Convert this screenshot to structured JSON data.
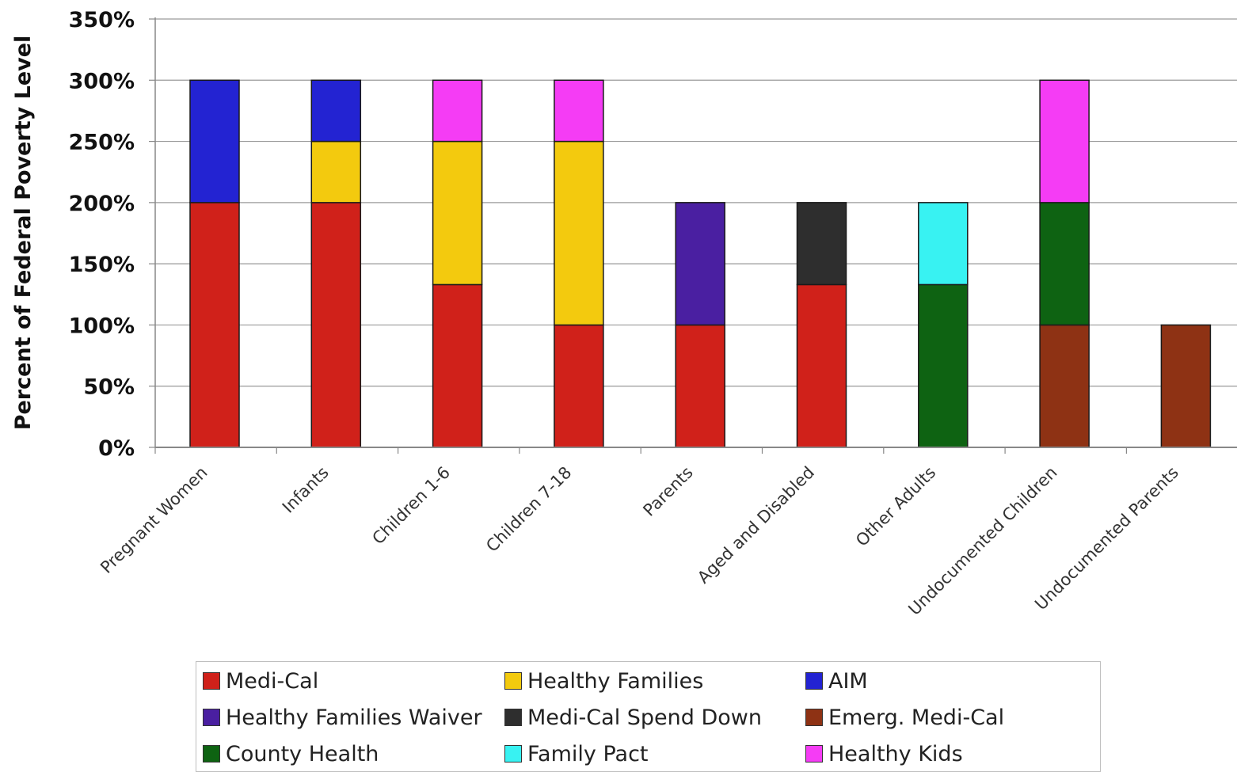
{
  "chart_data": {
    "type": "bar",
    "stacked": true,
    "title": "",
    "xlabel": "",
    "ylabel": "Percent of Federal Poverty Level",
    "ylim": [
      0,
      350
    ],
    "yticks": [
      "0%",
      "50%",
      "100%",
      "150%",
      "200%",
      "250%",
      "300%",
      "350%"
    ],
    "grid": true,
    "legend_position": "bottom",
    "categories": [
      "Pregnant Women",
      "Infants",
      "Children 1-6",
      "Children 7-18",
      "Parents",
      "Aged and Disabled",
      "Other Adults",
      "Undocumented Children",
      "Undocumented Parents"
    ],
    "series": [
      {
        "name": "Medi-Cal",
        "color": "#d0211a",
        "values": [
          200,
          200,
          133,
          100,
          100,
          133,
          0,
          0,
          0
        ]
      },
      {
        "name": "Healthy Families",
        "color": "#f3ca0e",
        "values": [
          0,
          50,
          117,
          150,
          0,
          0,
          0,
          0,
          0
        ]
      },
      {
        "name": "AIM",
        "color": "#2323d2",
        "values": [
          100,
          50,
          0,
          0,
          0,
          0,
          0,
          0,
          0
        ]
      },
      {
        "name": "Healthy Families Waiver",
        "color": "#4a1fa1",
        "values": [
          0,
          0,
          0,
          0,
          100,
          0,
          0,
          0,
          0
        ]
      },
      {
        "name": "Medi-Cal Spend Down",
        "color": "#2e2e2e",
        "values": [
          0,
          0,
          0,
          0,
          0,
          67,
          0,
          0,
          0
        ]
      },
      {
        "name": "Emerg. Medi-Cal",
        "color": "#8e3214",
        "values": [
          0,
          0,
          0,
          0,
          0,
          0,
          0,
          100,
          100
        ]
      },
      {
        "name": "County Health",
        "color": "#0e6312",
        "values": [
          0,
          0,
          0,
          0,
          0,
          0,
          133,
          100,
          0
        ]
      },
      {
        "name": "Family Pact",
        "color": "#38f2f2",
        "values": [
          0,
          0,
          0,
          0,
          0,
          0,
          67,
          0,
          0
        ]
      },
      {
        "name": "Healthy Kids",
        "color": "#f53cf5",
        "values": [
          0,
          0,
          50,
          50,
          0,
          0,
          0,
          100,
          0
        ]
      }
    ]
  }
}
